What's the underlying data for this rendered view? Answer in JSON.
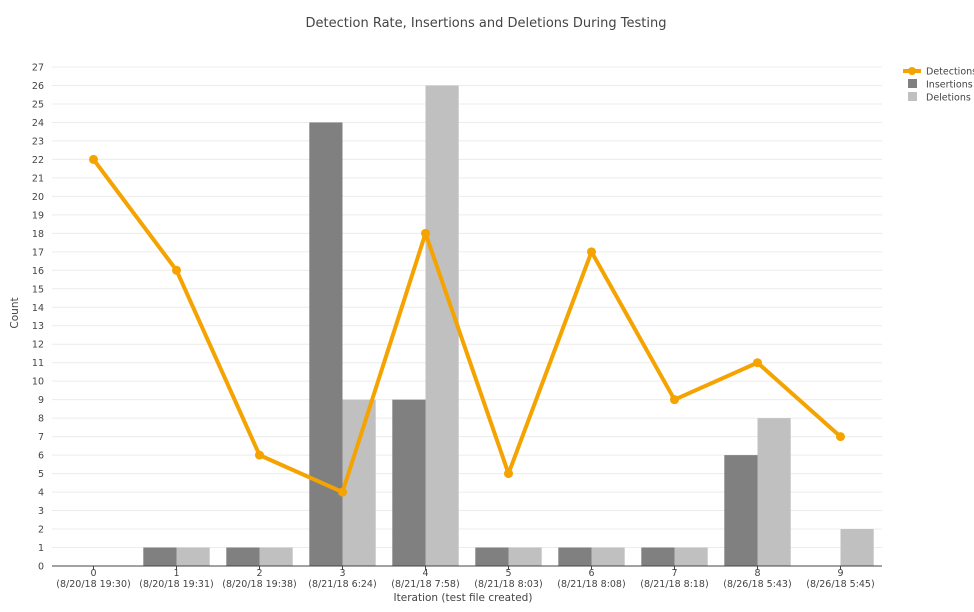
{
  "chart_data": {
    "type": "bar",
    "title": "Detection Rate, Insertions and Deletions During Testing",
    "xlabel": "Iteration (test file created)",
    "ylabel": "Count",
    "ylim": [
      0,
      27
    ],
    "y_ticks": [
      0,
      1,
      2,
      3,
      4,
      5,
      6,
      7,
      8,
      9,
      10,
      11,
      12,
      13,
      14,
      15,
      16,
      17,
      18,
      19,
      20,
      21,
      22,
      23,
      24,
      25,
      26,
      27
    ],
    "categories": [
      {
        "index": "0",
        "date": "(8/20/18 19:30)"
      },
      {
        "index": "1",
        "date": "(8/20/18 19:31)"
      },
      {
        "index": "2",
        "date": "(8/20/18 19:38)"
      },
      {
        "index": "3",
        "date": "(8/21/18 6:24)"
      },
      {
        "index": "4",
        "date": "(8/21/18 7:58)"
      },
      {
        "index": "5",
        "date": "(8/21/18 8:03)"
      },
      {
        "index": "6",
        "date": "(8/21/18 8:08)"
      },
      {
        "index": "7",
        "date": "(8/21/18 8:18)"
      },
      {
        "index": "8",
        "date": "(8/26/18 5:43)"
      },
      {
        "index": "9",
        "date": "(8/26/18 5:45)"
      }
    ],
    "series": [
      {
        "name": "Detections",
        "kind": "line",
        "color": "#f5a300",
        "values": [
          22,
          16,
          6,
          4,
          18,
          5,
          17,
          9,
          11,
          7
        ]
      },
      {
        "name": "Insertions",
        "kind": "bar",
        "color": "#808080",
        "values": [
          0,
          1,
          1,
          24,
          9,
          1,
          1,
          1,
          6,
          0
        ]
      },
      {
        "name": "Deletions",
        "kind": "bar",
        "color": "#c0c0c0",
        "values": [
          0,
          1,
          1,
          9,
          26,
          1,
          1,
          1,
          8,
          2
        ]
      }
    ],
    "grid": true,
    "legend_position": "top-right"
  }
}
